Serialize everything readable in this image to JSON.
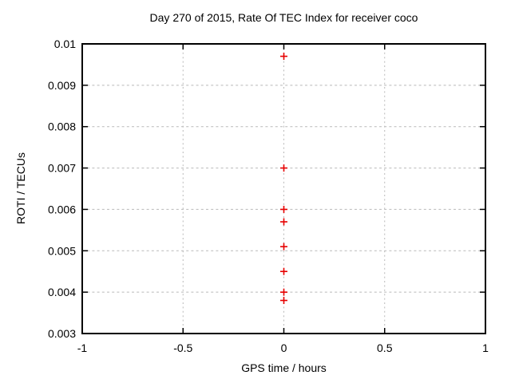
{
  "colors": {
    "background": "#ffffff",
    "axis": "#000000",
    "grid": "#b9b9b9",
    "text": "#000000",
    "marker": "#e60000"
  },
  "chart_data": {
    "type": "scatter",
    "title": "Day 270 of 2015, Rate Of TEC Index for receiver coco",
    "xlabel": "GPS time / hours",
    "ylabel": "ROTI / TECUs",
    "xlim": [
      -1,
      1
    ],
    "ylim": [
      0.003,
      0.01
    ],
    "xticks": {
      "values": [
        -1,
        -0.5,
        0,
        0.5,
        1
      ],
      "labels": [
        "-1",
        "-0.5",
        "0",
        "0.5",
        "1"
      ]
    },
    "yticks": {
      "values": [
        0.003,
        0.004,
        0.005,
        0.006,
        0.007,
        0.008,
        0.009,
        0.01
      ],
      "labels": [
        "0.003",
        "0.004",
        "0.005",
        "0.006",
        "0.007",
        "0.008",
        "0.009",
        "0.01"
      ]
    },
    "grid": true,
    "grid_style": "dashed",
    "legend": "none",
    "marker": "plus",
    "series": [
      {
        "name": "ROTI",
        "color": "#e60000",
        "x": [
          0,
          0,
          0,
          0,
          0,
          0,
          0,
          0
        ],
        "y": [
          0.0097,
          0.007,
          0.006,
          0.0057,
          0.0051,
          0.0045,
          0.004,
          0.0038
        ]
      }
    ]
  }
}
